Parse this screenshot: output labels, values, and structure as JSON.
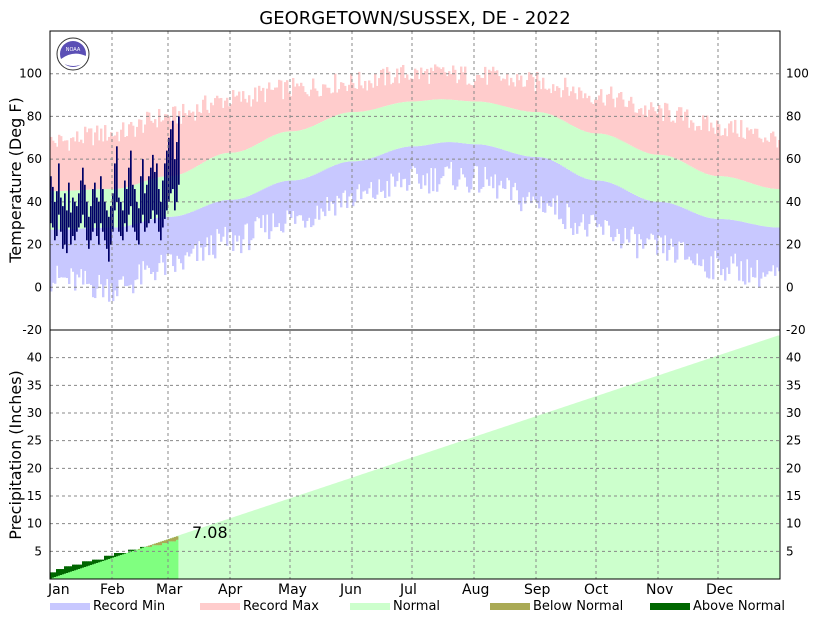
{
  "chart_data": {
    "type": "area",
    "title": "GEORGETOWN/SUSSEX, DE - 2022",
    "months": [
      "Jan",
      "Feb",
      "Mar",
      "Apr",
      "May",
      "Jun",
      "Jul",
      "Aug",
      "Sep",
      "Oct",
      "Nov",
      "Dec"
    ],
    "logo_text": "NOAA",
    "colors": {
      "record_min": "#c8c8ff",
      "record_max": "#ffcccc",
      "normal": "#ccffcc",
      "below_normal": "#aaaa55",
      "above_normal": "#006600",
      "observed_temp": "#000066",
      "observed_precip_fill": "#80ff80",
      "grid": "#888888",
      "logo": "#5b4fb5"
    },
    "temperature": {
      "ylabel": "Temperature (Deg F)",
      "ylim": [
        -20,
        120
      ],
      "yticks": [
        -20,
        0,
        20,
        40,
        60,
        80,
        100
      ],
      "normal_high_anchors": [
        [
          1,
          45
        ],
        [
          32,
          46
        ],
        [
          60,
          52
        ],
        [
          91,
          63
        ],
        [
          121,
          73
        ],
        [
          152,
          82
        ],
        [
          182,
          87
        ],
        [
          196,
          88
        ],
        [
          213,
          87
        ],
        [
          244,
          82
        ],
        [
          274,
          72
        ],
        [
          305,
          62
        ],
        [
          335,
          52
        ],
        [
          365,
          46
        ]
      ],
      "normal_low_anchors": [
        [
          1,
          27
        ],
        [
          32,
          28
        ],
        [
          60,
          33
        ],
        [
          91,
          41
        ],
        [
          121,
          50
        ],
        [
          152,
          59
        ],
        [
          182,
          66
        ],
        [
          200,
          68
        ],
        [
          213,
          67
        ],
        [
          244,
          61
        ],
        [
          274,
          50
        ],
        [
          305,
          40
        ],
        [
          335,
          32
        ],
        [
          365,
          28
        ]
      ],
      "record_high_anchors": [
        [
          1,
          68
        ],
        [
          32,
          72
        ],
        [
          60,
          80
        ],
        [
          91,
          88
        ],
        [
          121,
          93
        ],
        [
          152,
          96
        ],
        [
          182,
          100
        ],
        [
          196,
          100
        ],
        [
          213,
          99
        ],
        [
          244,
          96
        ],
        [
          274,
          90
        ],
        [
          305,
          82
        ],
        [
          335,
          75
        ],
        [
          365,
          70
        ]
      ],
      "record_low_anchors": [
        [
          1,
          4
        ],
        [
          32,
          0
        ],
        [
          60,
          10
        ],
        [
          91,
          22
        ],
        [
          121,
          32
        ],
        [
          152,
          42
        ],
        [
          182,
          50
        ],
        [
          200,
          52
        ],
        [
          213,
          50
        ],
        [
          244,
          40
        ],
        [
          274,
          27
        ],
        [
          305,
          18
        ],
        [
          335,
          10
        ],
        [
          365,
          5
        ]
      ],
      "observed_start_day": 1,
      "observed_highs": [
        52,
        47,
        40,
        45,
        58,
        42,
        38,
        44,
        36,
        49,
        35,
        42,
        40,
        38,
        44,
        50,
        56,
        48,
        40,
        33,
        38,
        46,
        49,
        42,
        40,
        52,
        46,
        40,
        36,
        33,
        38,
        44,
        58,
        66,
        42,
        40,
        36,
        50,
        46,
        56,
        64,
        48,
        46,
        40,
        37,
        52,
        60,
        44,
        48,
        52,
        56,
        62,
        54,
        58,
        46,
        40,
        50,
        58,
        64,
        70,
        74,
        78,
        60,
        68,
        80
      ],
      "observed_lows": [
        30,
        28,
        22,
        24,
        34,
        26,
        18,
        20,
        16,
        28,
        20,
        24,
        22,
        26,
        28,
        30,
        34,
        28,
        22,
        18,
        22,
        26,
        30,
        24,
        20,
        30,
        26,
        22,
        18,
        12,
        20,
        26,
        36,
        40,
        26,
        24,
        22,
        30,
        26,
        34,
        38,
        28,
        26,
        22,
        20,
        30,
        34,
        26,
        28,
        30,
        32,
        36,
        30,
        34,
        26,
        22,
        28,
        32,
        36,
        40,
        44,
        46,
        36,
        40,
        48
      ]
    },
    "precipitation": {
      "ylabel": "Precipitation (Inches)",
      "ylim": [
        0,
        45
      ],
      "yticks": [
        5,
        10,
        15,
        20,
        25,
        30,
        35,
        40
      ],
      "normal_total_annual": 44.0,
      "observed_steps": [
        [
          1,
          1.2
        ],
        [
          4,
          1.8
        ],
        [
          8,
          2.3
        ],
        [
          12,
          2.6
        ],
        [
          17,
          3.2
        ],
        [
          22,
          3.5
        ],
        [
          28,
          4.2
        ],
        [
          33,
          4.7
        ],
        [
          40,
          5.3
        ],
        [
          46,
          5.8
        ],
        [
          52,
          6.1
        ],
        [
          57,
          6.5
        ],
        [
          60,
          6.8
        ],
        [
          64,
          7.08
        ]
      ],
      "ytd_label": "7.08"
    },
    "legend": [
      {
        "label": "Record Min",
        "key": "record_min"
      },
      {
        "label": "Record Max",
        "key": "record_max"
      },
      {
        "label": "Normal",
        "key": "normal"
      },
      {
        "label": "Below Normal",
        "key": "below_normal"
      },
      {
        "label": "Above Normal",
        "key": "above_normal"
      }
    ],
    "grid": true
  }
}
